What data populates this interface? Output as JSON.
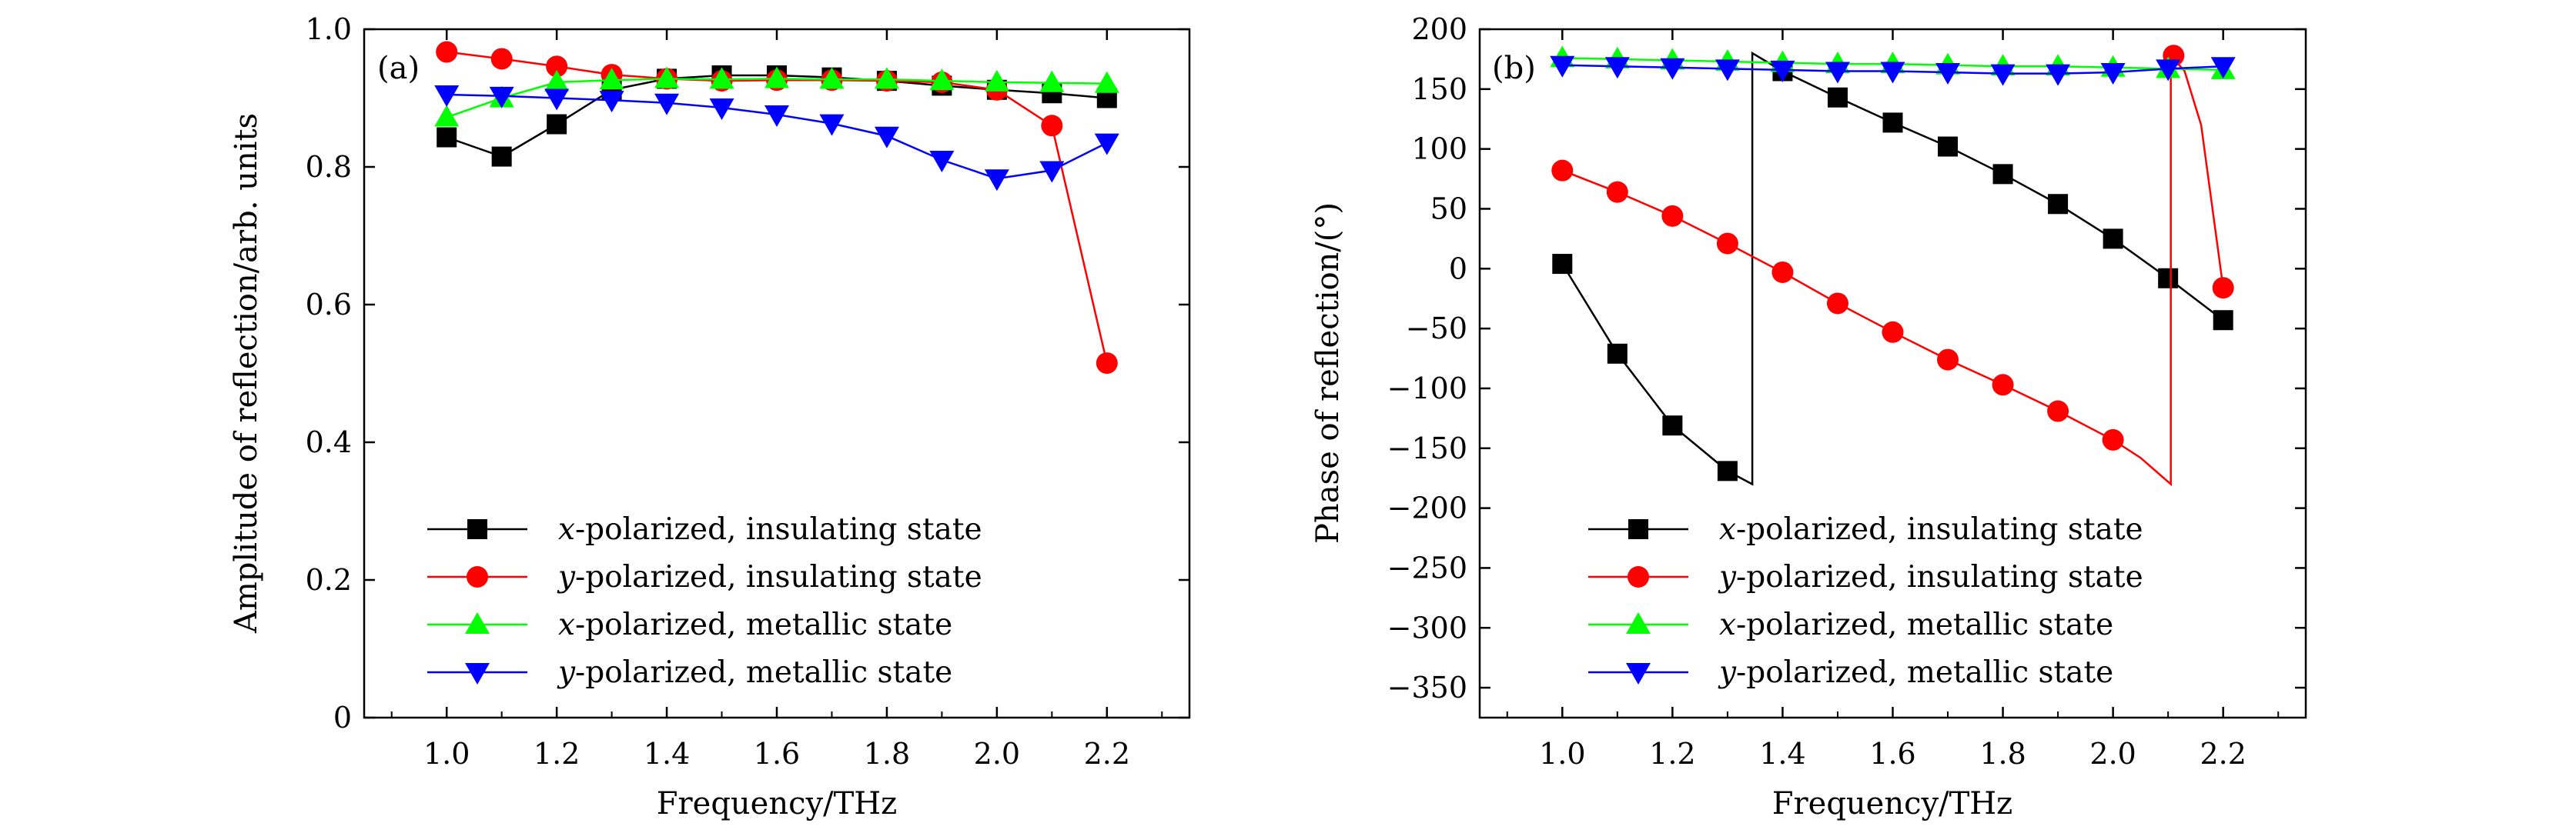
{
  "chart_data": [
    {
      "type": "line",
      "panel_label": "(a)",
      "xlabel": "Frequency/THz",
      "ylabel": "Amplitude of reflection/arb. units",
      "xlim": [
        0.85,
        2.35
      ],
      "ylim": [
        0,
        1.0
      ],
      "xticks": [
        1.0,
        1.2,
        1.4,
        1.6,
        1.8,
        2.0,
        2.2
      ],
      "xtick_labels": [
        "1.0",
        "1.2",
        "1.4",
        "1.6",
        "1.8",
        "2.0",
        "2.2"
      ],
      "yticks": [
        0,
        0.2,
        0.4,
        0.6,
        0.8,
        1.0
      ],
      "ytick_labels": [
        "0",
        "0.2",
        "0.4",
        "0.6",
        "0.8",
        "1.0"
      ],
      "grid": false,
      "legend_position": "bottom-left",
      "series": [
        {
          "var": "x",
          "name": "-polarized, insulating state",
          "color": "#000000",
          "marker": "square",
          "x": [
            1.0,
            1.1,
            1.2,
            1.3,
            1.4,
            1.5,
            1.6,
            1.7,
            1.8,
            1.9,
            2.0,
            2.1,
            2.2
          ],
          "y": [
            0.843,
            0.815,
            0.862,
            0.912,
            0.928,
            0.933,
            0.933,
            0.93,
            0.925,
            0.918,
            0.912,
            0.907,
            0.9
          ]
        },
        {
          "var": "y",
          "name": "-polarized, insulating state",
          "color": "#ff0000",
          "marker": "circle",
          "x": [
            1.0,
            1.1,
            1.2,
            1.3,
            1.4,
            1.5,
            1.6,
            1.7,
            1.8,
            1.9,
            2.0,
            2.1,
            2.2
          ],
          "y": [
            0.967,
            0.957,
            0.946,
            0.934,
            0.928,
            0.925,
            0.926,
            0.926,
            0.925,
            0.923,
            0.912,
            0.86,
            0.515
          ]
        },
        {
          "var": "x",
          "name": "-polarized, metallic state",
          "color": "#00ff00",
          "marker": "triangle-up",
          "x": [
            1.0,
            1.1,
            1.2,
            1.3,
            1.4,
            1.5,
            1.6,
            1.7,
            1.8,
            1.9,
            2.0,
            2.1,
            2.2
          ],
          "y": [
            0.872,
            0.9,
            0.923,
            0.926,
            0.928,
            0.927,
            0.928,
            0.927,
            0.927,
            0.925,
            0.923,
            0.922,
            0.921
          ]
        },
        {
          "var": "y",
          "name": "-polarized, metallic state",
          "color": "#0000ff",
          "marker": "triangle-down",
          "x": [
            1.0,
            1.1,
            1.2,
            1.3,
            1.4,
            1.5,
            1.6,
            1.7,
            1.8,
            1.9,
            2.0,
            2.1,
            2.2
          ],
          "y": [
            0.905,
            0.903,
            0.9,
            0.897,
            0.893,
            0.886,
            0.876,
            0.863,
            0.845,
            0.81,
            0.783,
            0.795,
            0.835
          ]
        }
      ]
    },
    {
      "type": "line",
      "panel_label": "(b)",
      "xlabel": "Frequency/THz",
      "ylabel": "Phase of reflection/(°)",
      "xlim": [
        0.85,
        2.35
      ],
      "ylim": [
        -375,
        200
      ],
      "xticks": [
        1.0,
        1.2,
        1.4,
        1.6,
        1.8,
        2.0,
        2.2
      ],
      "xtick_labels": [
        "1.0",
        "1.2",
        "1.4",
        "1.6",
        "1.8",
        "2.0",
        "2.2"
      ],
      "yticks": [
        200,
        150,
        100,
        50,
        0,
        -50,
        -100,
        -150,
        -200,
        -250,
        -300,
        -350
      ],
      "ytick_labels": [
        "200",
        "150",
        "100",
        "50",
        "0",
        "−50",
        "−100",
        "−150",
        "−200",
        "−250",
        "−300",
        "−350"
      ],
      "grid": false,
      "legend_position": "bottom-left",
      "series": [
        {
          "var": "x",
          "name": "-polarized, insulating state",
          "color": "#000000",
          "marker": "square",
          "x": [
            1.0,
            1.1,
            1.2,
            1.3,
            1.4,
            1.5,
            1.6,
            1.7,
            1.8,
            1.9,
            2.0,
            2.1,
            2.2
          ],
          "y": [
            4,
            -71,
            -131,
            -169,
            165,
            143,
            122,
            102,
            79,
            54,
            25,
            -8,
            -43
          ],
          "curve": [
            [
              1.0,
              4
            ],
            [
              1.1,
              -71
            ],
            [
              1.2,
              -131
            ],
            [
              1.3,
              -169
            ],
            [
              1.345,
              -180
            ],
            [
              1.345,
              180
            ],
            [
              1.4,
              165
            ],
            [
              1.5,
              143
            ],
            [
              1.6,
              122
            ],
            [
              1.7,
              102
            ],
            [
              1.8,
              79
            ],
            [
              1.9,
              54
            ],
            [
              2.0,
              25
            ],
            [
              2.1,
              -8
            ],
            [
              2.2,
              -43
            ]
          ]
        },
        {
          "var": "y",
          "name": "-polarized, insulating state",
          "color": "#ff0000",
          "marker": "circle",
          "x": [
            1.0,
            1.1,
            1.2,
            1.3,
            1.4,
            1.5,
            1.6,
            1.7,
            1.8,
            1.9,
            2.0,
            2.11,
            2.2
          ],
          "y": [
            82,
            64,
            44,
            21,
            -3,
            -29,
            -53,
            -76,
            -97,
            -119,
            -143,
            178,
            -16
          ],
          "curve": [
            [
              1.0,
              82
            ],
            [
              1.1,
              64
            ],
            [
              1.2,
              44
            ],
            [
              1.3,
              21
            ],
            [
              1.4,
              -3
            ],
            [
              1.5,
              -29
            ],
            [
              1.6,
              -53
            ],
            [
              1.7,
              -76
            ],
            [
              1.8,
              -97
            ],
            [
              1.9,
              -119
            ],
            [
              2.0,
              -143
            ],
            [
              2.05,
              -158
            ],
            [
              2.105,
              -180
            ],
            [
              2.105,
              178
            ],
            [
              2.13,
              165
            ],
            [
              2.16,
              120
            ],
            [
              2.2,
              -16
            ]
          ]
        },
        {
          "var": "x",
          "name": "-polarized, metallic state",
          "color": "#00ff00",
          "marker": "triangle-up",
          "x": [
            1.0,
            1.1,
            1.2,
            1.3,
            1.4,
            1.5,
            1.6,
            1.7,
            1.8,
            1.9,
            2.0,
            2.1,
            2.2
          ],
          "y": [
            176,
            175,
            174,
            173,
            172,
            171,
            171,
            170,
            169,
            169,
            168,
            167,
            166
          ]
        },
        {
          "var": "y",
          "name": "-polarized, metallic state",
          "color": "#0000ff",
          "marker": "triangle-down",
          "x": [
            1.0,
            1.1,
            1.2,
            1.3,
            1.4,
            1.5,
            1.6,
            1.7,
            1.8,
            1.9,
            2.0,
            2.1,
            2.2
          ],
          "y": [
            170,
            169,
            168,
            167,
            166,
            165,
            165,
            164,
            163,
            163,
            164,
            167,
            169
          ]
        }
      ]
    }
  ]
}
